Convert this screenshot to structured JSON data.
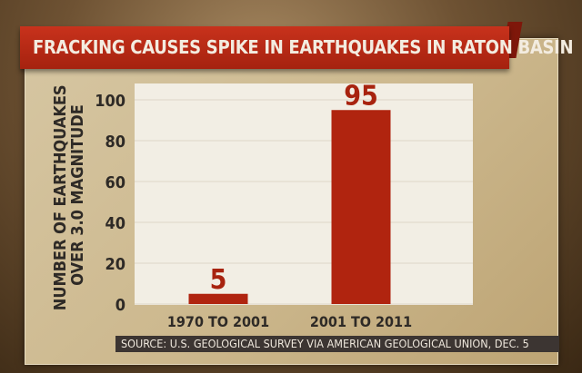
{
  "chart_data": {
    "type": "bar",
    "title": "FRACKING CAUSES SPIKE IN EARTHQUAKES IN RATON BASIN",
    "categories": [
      "1970 TO 2001",
      "2001 TO 2011"
    ],
    "values": [
      5,
      95
    ],
    "data_labels": [
      "5",
      "95"
    ],
    "ylabel_lines": [
      "NUMBER OF EARTHQUAKES",
      "OVER 3.0 MAGNITUDE"
    ],
    "xlabel": "",
    "ylim": [
      0,
      100
    ],
    "yticks": [
      0,
      20,
      40,
      60,
      80,
      100
    ],
    "grid": true,
    "bar_color": "#b0240f",
    "source": "SOURCE: U.S. GEOLOGICAL SURVEY VIA AMERICAN GEOLOGICAL UNION, DEC. 5"
  }
}
